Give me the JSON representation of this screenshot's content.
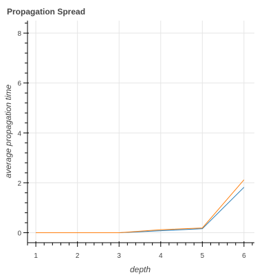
{
  "chart_data": {
    "type": "line",
    "title": "Propagation Spread",
    "xlabel": "depth",
    "ylabel": "average propagation time",
    "x": [
      1,
      2,
      3,
      4,
      5,
      6
    ],
    "series": [
      {
        "color": "#1f77b4",
        "values": [
          0,
          0,
          0,
          0.08,
          0.16,
          1.82
        ]
      },
      {
        "color": "#ff7f0e",
        "values": [
          0,
          0,
          0,
          0.12,
          0.19,
          2.12
        ]
      }
    ],
    "xticks": [
      1,
      2,
      3,
      4,
      5,
      6
    ],
    "yticks": [
      0,
      2,
      4,
      6,
      8
    ],
    "xlim": [
      0.8,
      6.25
    ],
    "ylim": [
      -0.4,
      8.5
    ],
    "grid": true,
    "legend": "none"
  }
}
